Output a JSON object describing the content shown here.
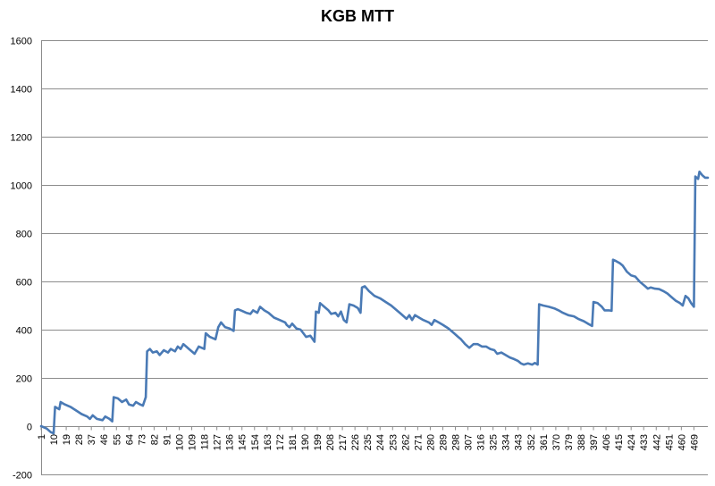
{
  "chart_data": {
    "type": "line",
    "title": "KGB MTT",
    "xlabel": "",
    "ylabel": "",
    "ylim": [
      -200,
      1600
    ],
    "yticks": [
      -200,
      0,
      200,
      400,
      600,
      800,
      1000,
      1200,
      1400,
      1600
    ],
    "xlim": [
      1,
      479
    ],
    "xticks": [
      1,
      10,
      19,
      28,
      37,
      46,
      55,
      64,
      73,
      82,
      91,
      100,
      109,
      118,
      127,
      136,
      145,
      154,
      163,
      172,
      181,
      190,
      199,
      208,
      217,
      226,
      235,
      244,
      253,
      262,
      271,
      280,
      289,
      298,
      307,
      316,
      325,
      334,
      343,
      352,
      361,
      370,
      379,
      388,
      397,
      406,
      415,
      424,
      433,
      442,
      451,
      460,
      469
    ],
    "grid": true,
    "legend": "none",
    "colors": {
      "line": "#4a7ab5",
      "grid": "#8c8c8c"
    },
    "series": [
      {
        "points": [
          [
            1,
            0
          ],
          [
            5,
            -10
          ],
          [
            8,
            -25
          ],
          [
            10,
            -30
          ],
          [
            11,
            80
          ],
          [
            14,
            70
          ],
          [
            15,
            100
          ],
          [
            18,
            90
          ],
          [
            22,
            80
          ],
          [
            26,
            65
          ],
          [
            30,
            50
          ],
          [
            34,
            40
          ],
          [
            36,
            30
          ],
          [
            38,
            45
          ],
          [
            41,
            30
          ],
          [
            45,
            25
          ],
          [
            47,
            40
          ],
          [
            50,
            30
          ],
          [
            52,
            20
          ],
          [
            53,
            120
          ],
          [
            56,
            115
          ],
          [
            59,
            100
          ],
          [
            62,
            110
          ],
          [
            64,
            90
          ],
          [
            67,
            85
          ],
          [
            69,
            100
          ],
          [
            72,
            90
          ],
          [
            74,
            85
          ],
          [
            76,
            120
          ],
          [
            77,
            310
          ],
          [
            79,
            320
          ],
          [
            81,
            305
          ],
          [
            84,
            310
          ],
          [
            86,
            295
          ],
          [
            89,
            315
          ],
          [
            92,
            305
          ],
          [
            94,
            320
          ],
          [
            97,
            310
          ],
          [
            99,
            330
          ],
          [
            101,
            320
          ],
          [
            103,
            340
          ],
          [
            105,
            330
          ],
          [
            107,
            320
          ],
          [
            111,
            300
          ],
          [
            114,
            330
          ],
          [
            118,
            320
          ],
          [
            119,
            385
          ],
          [
            122,
            370
          ],
          [
            126,
            360
          ],
          [
            128,
            410
          ],
          [
            130,
            430
          ],
          [
            133,
            410
          ],
          [
            136,
            405
          ],
          [
            139,
            395
          ],
          [
            140,
            480
          ],
          [
            142,
            485
          ],
          [
            145,
            478
          ],
          [
            148,
            470
          ],
          [
            151,
            465
          ],
          [
            153,
            480
          ],
          [
            156,
            470
          ],
          [
            158,
            495
          ],
          [
            161,
            480
          ],
          [
            164,
            470
          ],
          [
            168,
            450
          ],
          [
            172,
            440
          ],
          [
            176,
            430
          ],
          [
            177,
            420
          ],
          [
            179,
            410
          ],
          [
            181,
            425
          ],
          [
            184,
            405
          ],
          [
            187,
            400
          ],
          [
            189,
            385
          ],
          [
            191,
            370
          ],
          [
            194,
            375
          ],
          [
            197,
            350
          ],
          [
            198,
            475
          ],
          [
            200,
            470
          ],
          [
            201,
            510
          ],
          [
            204,
            495
          ],
          [
            207,
            480
          ],
          [
            209,
            465
          ],
          [
            212,
            470
          ],
          [
            214,
            455
          ],
          [
            216,
            475
          ],
          [
            218,
            440
          ],
          [
            220,
            430
          ],
          [
            222,
            505
          ],
          [
            225,
            500
          ],
          [
            228,
            490
          ],
          [
            230,
            470
          ],
          [
            231,
            575
          ],
          [
            233,
            580
          ],
          [
            236,
            560
          ],
          [
            240,
            540
          ],
          [
            244,
            530
          ],
          [
            248,
            515
          ],
          [
            252,
            500
          ],
          [
            256,
            480
          ],
          [
            259,
            465
          ],
          [
            261,
            455
          ],
          [
            263,
            445
          ],
          [
            265,
            460
          ],
          [
            267,
            440
          ],
          [
            269,
            460
          ],
          [
            272,
            450
          ],
          [
            275,
            440
          ],
          [
            279,
            430
          ],
          [
            281,
            420
          ],
          [
            283,
            440
          ],
          [
            286,
            430
          ],
          [
            289,
            420
          ],
          [
            293,
            405
          ],
          [
            297,
            385
          ],
          [
            300,
            370
          ],
          [
            302,
            360
          ],
          [
            305,
            340
          ],
          [
            308,
            325
          ],
          [
            311,
            340
          ],
          [
            314,
            340
          ],
          [
            317,
            330
          ],
          [
            320,
            330
          ],
          [
            323,
            320
          ],
          [
            326,
            315
          ],
          [
            328,
            300
          ],
          [
            331,
            305
          ],
          [
            334,
            295
          ],
          [
            337,
            285
          ],
          [
            340,
            278
          ],
          [
            343,
            270
          ],
          [
            345,
            260
          ],
          [
            347,
            255
          ],
          [
            350,
            260
          ],
          [
            353,
            255
          ],
          [
            355,
            262
          ],
          [
            357,
            255
          ],
          [
            358,
            505
          ],
          [
            361,
            500
          ],
          [
            365,
            495
          ],
          [
            369,
            488
          ],
          [
            372,
            480
          ],
          [
            375,
            470
          ],
          [
            379,
            460
          ],
          [
            383,
            455
          ],
          [
            386,
            445
          ],
          [
            390,
            435
          ],
          [
            393,
            425
          ],
          [
            396,
            415
          ],
          [
            397,
            515
          ],
          [
            400,
            510
          ],
          [
            403,
            495
          ],
          [
            405,
            480
          ],
          [
            408,
            480
          ],
          [
            410,
            478
          ],
          [
            411,
            690
          ],
          [
            413,
            685
          ],
          [
            416,
            675
          ],
          [
            418,
            665
          ],
          [
            421,
            640
          ],
          [
            424,
            625
          ],
          [
            427,
            620
          ],
          [
            430,
            600
          ],
          [
            432,
            590
          ],
          [
            434,
            580
          ],
          [
            436,
            570
          ],
          [
            438,
            575
          ],
          [
            441,
            570
          ],
          [
            444,
            568
          ],
          [
            447,
            560
          ],
          [
            450,
            550
          ],
          [
            453,
            535
          ],
          [
            456,
            520
          ],
          [
            459,
            510
          ],
          [
            461,
            500
          ],
          [
            463,
            540
          ],
          [
            465,
            530
          ],
          [
            467,
            510
          ],
          [
            469,
            495
          ],
          [
            470,
            1035
          ],
          [
            472,
            1025
          ],
          [
            473,
            1055
          ],
          [
            475,
            1040
          ],
          [
            477,
            1030
          ],
          [
            479,
            1030
          ]
        ]
      }
    ]
  }
}
